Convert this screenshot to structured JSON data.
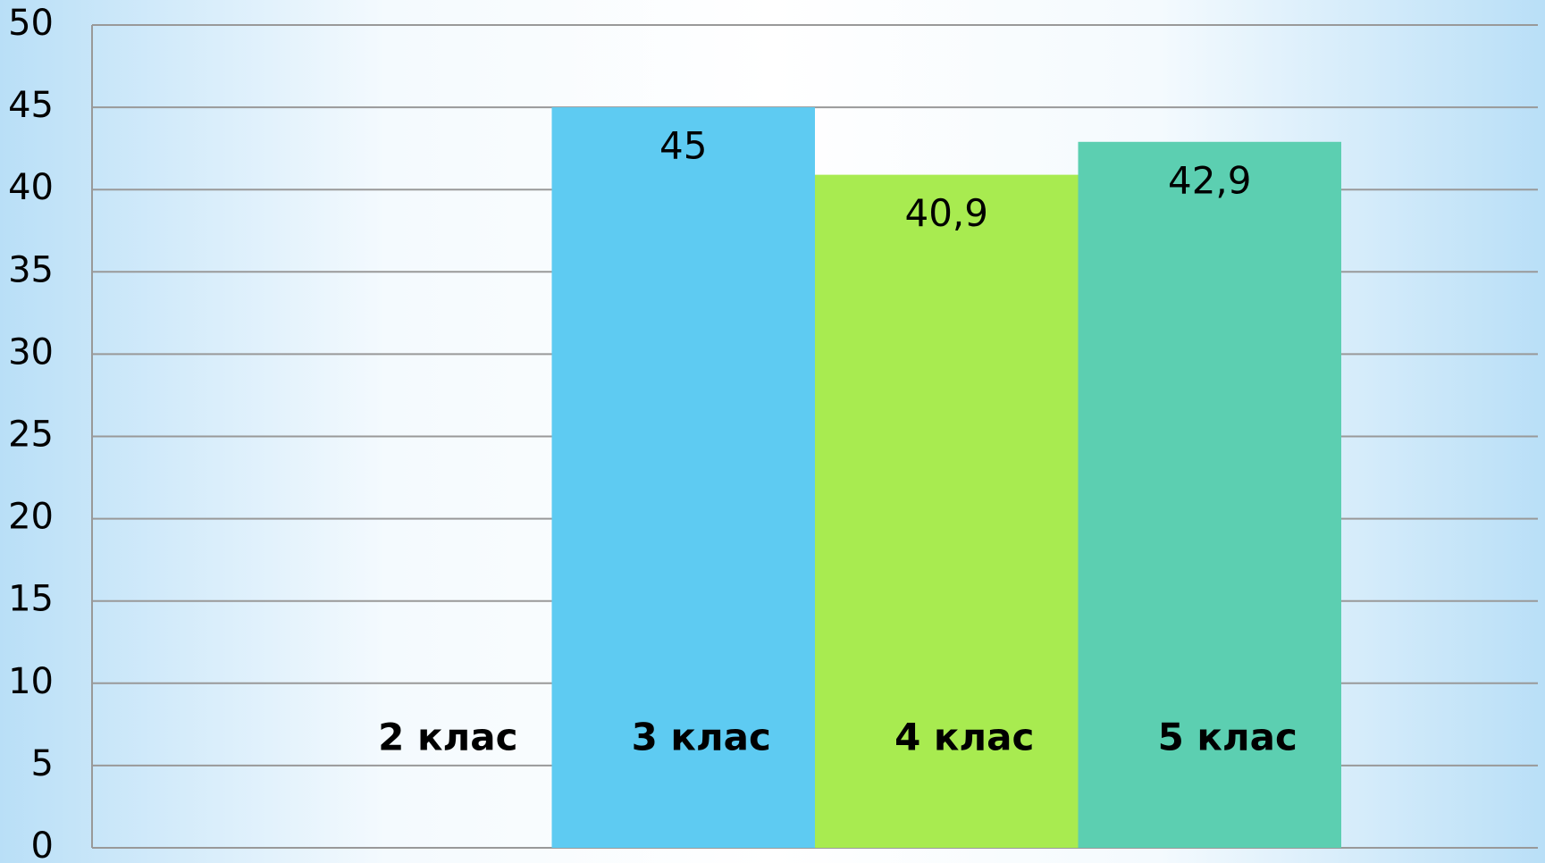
{
  "chart_data": {
    "type": "bar",
    "series": [
      {
        "name": "2 клас",
        "values": [
          null
        ]
      },
      {
        "name": "3 клас",
        "color": "#5ecbf2",
        "values": [
          45
        ],
        "value_labels": [
          "45"
        ]
      },
      {
        "name": "4 клас",
        "color": "#a8eb50",
        "values": [
          40.9
        ],
        "value_labels": [
          "40,9"
        ]
      },
      {
        "name": "5 клас",
        "color": "#5ccfb1",
        "values": [
          42.9
        ],
        "value_labels": [
          "42,9"
        ]
      }
    ],
    "ylim": [
      0,
      50
    ],
    "yticks": [
      0,
      5,
      10,
      15,
      20,
      25,
      30,
      35,
      40,
      45,
      50
    ],
    "grid": true
  }
}
